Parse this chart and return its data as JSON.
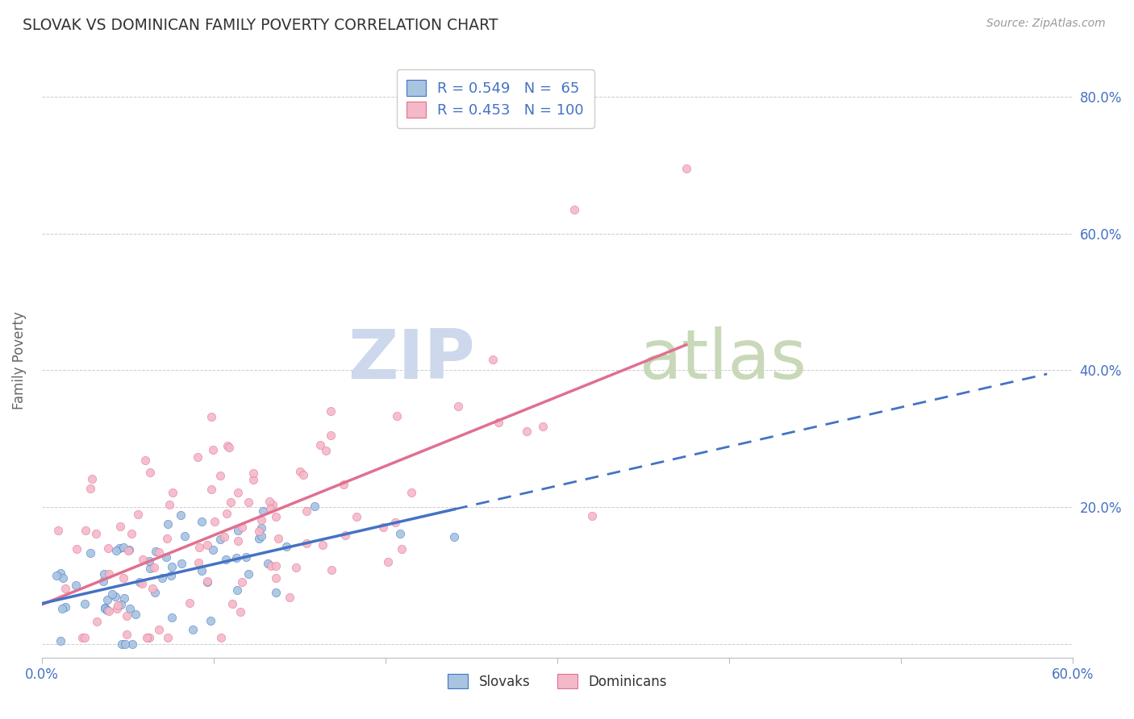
{
  "title": "SLOVAK VS DOMINICAN FAMILY POVERTY CORRELATION CHART",
  "source": "Source: ZipAtlas.com",
  "ylabel": "Family Poverty",
  "xlim": [
    0.0,
    0.6
  ],
  "ylim": [
    -0.02,
    0.85
  ],
  "slovak_R": 0.549,
  "slovak_N": 65,
  "dominican_R": 0.453,
  "dominican_N": 100,
  "slovak_color": "#a8c4e0",
  "dominican_color": "#f4b8c8",
  "slovak_line_color": "#4472c4",
  "dominican_line_color": "#e07090",
  "legend_label_slovak": "Slovaks",
  "legend_label_dominican": "Dominicans",
  "title_color": "#333333",
  "axis_label_color": "#4472c4",
  "watermark_zip": "ZIP",
  "watermark_atlas": "atlas",
  "watermark_color_zip": "#c8d8ee",
  "watermark_color_atlas": "#c8d8b0",
  "background_color": "#ffffff",
  "grid_color": "#cccccc",
  "seed": 7
}
